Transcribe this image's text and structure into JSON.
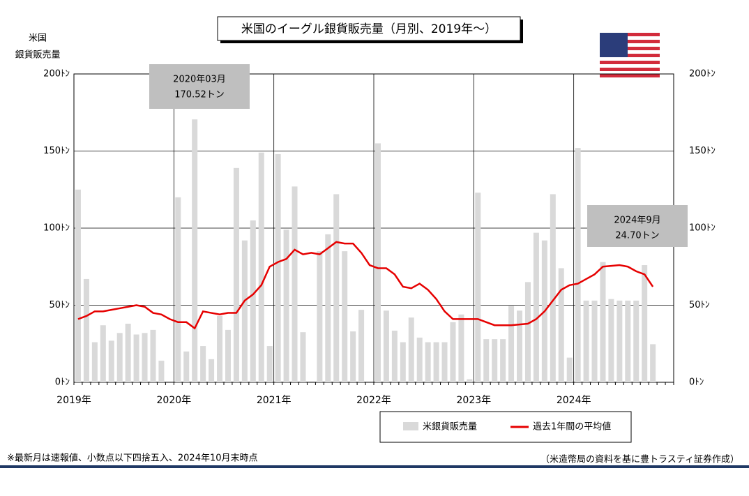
{
  "chart_data": {
    "type": "bar-line",
    "title": "米国のイーグル銀貨販売量（月別、2019年～）",
    "y_axis_label": [
      "米国",
      "銀貨販売量"
    ],
    "categories": [
      "2019年",
      null,
      null,
      null,
      null,
      null,
      null,
      null,
      null,
      null,
      null,
      null,
      "2020年",
      null,
      null,
      null,
      null,
      null,
      null,
      null,
      null,
      null,
      null,
      null,
      "2021年",
      null,
      null,
      null,
      null,
      null,
      null,
      null,
      null,
      null,
      null,
      null,
      "2022年",
      null,
      null,
      null,
      null,
      null,
      null,
      null,
      null,
      null,
      null,
      null,
      "2023年",
      null,
      null,
      null,
      null,
      null,
      null,
      null,
      null,
      null,
      null,
      null,
      "2024年",
      null,
      null,
      null,
      null,
      null,
      null,
      null,
      null,
      null
    ],
    "series": [
      {
        "name": "米銀貨販売量",
        "color": "#d9d9d9",
        "values": [
          125,
          67,
          26,
          37,
          27,
          32,
          38,
          31,
          32,
          34,
          14,
          0,
          120,
          20,
          170.52,
          23.5,
          15,
          43,
          34,
          139,
          92,
          105,
          149,
          23.5,
          148,
          99,
          127,
          32.5,
          0,
          85,
          96,
          122,
          85,
          33,
          47,
          0,
          155,
          46.5,
          33.5,
          26,
          42,
          29,
          26,
          26,
          26,
          39,
          44,
          2,
          123,
          28,
          28,
          28,
          49.5,
          46.5,
          65,
          97,
          92,
          122,
          74,
          16,
          152,
          53,
          53,
          78,
          54,
          53,
          53,
          53,
          76,
          24.7
        ]
      },
      {
        "name": "過去1年間の平均値",
        "color": "#e60000",
        "values": [
          41,
          43,
          46,
          46,
          47,
          48,
          49,
          50,
          49,
          45,
          44,
          41,
          39,
          39,
          35,
          46,
          45,
          44,
          45,
          45,
          53,
          57,
          63,
          75,
          78,
          80,
          86,
          83,
          84,
          83,
          87,
          91,
          90,
          90,
          84,
          76,
          74,
          74,
          70,
          62,
          61,
          64,
          60,
          54,
          46,
          41,
          41,
          41,
          41,
          39,
          37,
          37,
          37,
          37.5,
          38,
          41,
          46,
          53,
          60,
          63,
          64,
          67,
          70,
          75,
          75.5,
          76,
          75,
          72,
          70,
          62
        ]
      }
    ],
    "ylim": [
      0,
      200
    ],
    "yticks": [
      {
        "value": 0,
        "label": "0ﾄﾝ"
      },
      {
        "value": 50,
        "label": "50ﾄﾝ"
      },
      {
        "value": 100,
        "label": "100ﾄﾝ"
      },
      {
        "value": 150,
        "label": "150ﾄﾝ"
      },
      {
        "value": 200,
        "label": "200ﾄﾝ"
      }
    ],
    "months_on_axis": 72,
    "annotations": [
      {
        "lines": [
          "2020年03月",
          "170.52トン"
        ]
      },
      {
        "lines": [
          "2024年9月",
          "24.70トン"
        ]
      }
    ],
    "footnote_left": "※最新月は速報値、小数点以下四捨五入、2024年10月末時点",
    "footnote_right": "（米造幣局の資料を基に豊トラスティ証券作成）"
  }
}
